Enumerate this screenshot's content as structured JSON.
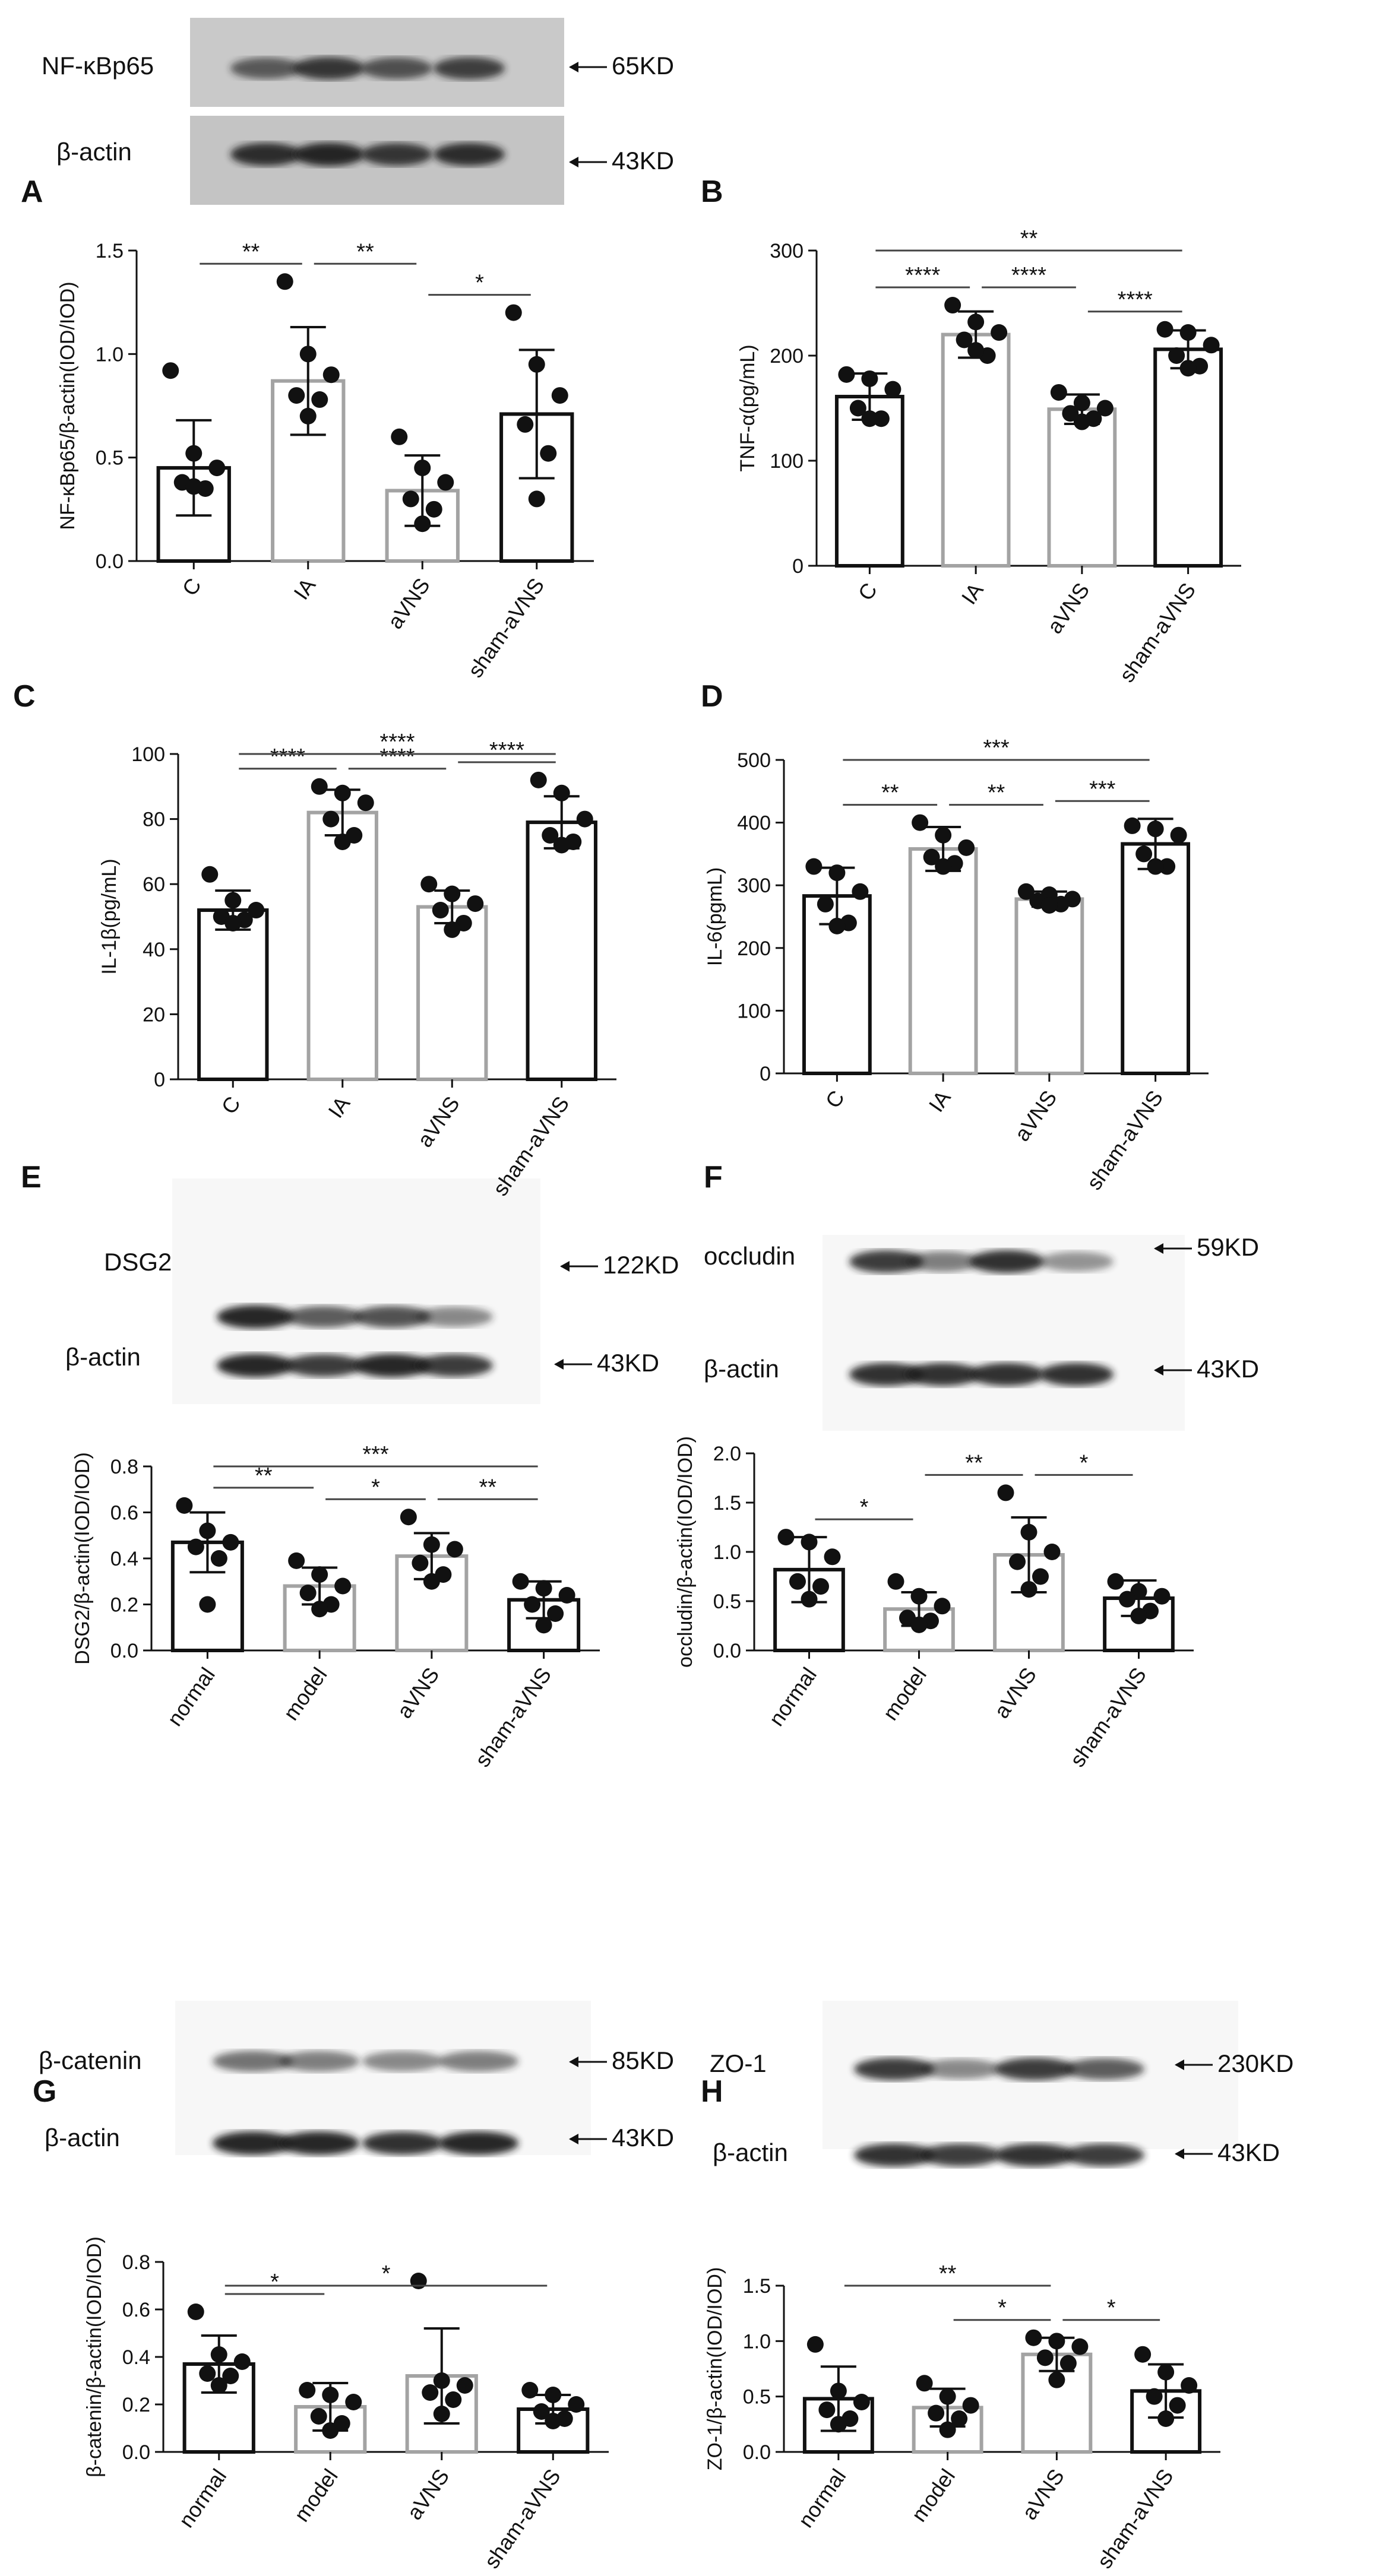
{
  "chart_data": [
    {
      "panel": "A",
      "type": "bar",
      "ylabel": "NF-κBp65/β-actin(IOD/IOD)",
      "ylim": [
        0,
        1.5
      ],
      "yticks": [
        "0.0",
        "0.5",
        "1.0",
        "1.5"
      ],
      "categories": [
        "C",
        "IA",
        "aVNS",
        "sham-aVNS"
      ],
      "values": [
        0.45,
        0.87,
        0.34,
        0.71
      ],
      "sd": [
        0.23,
        0.26,
        0.17,
        0.31
      ],
      "points": [
        [
          0.92,
          0.52,
          0.45,
          0.38,
          0.35,
          0.36
        ],
        [
          1.35,
          1.0,
          0.9,
          0.8,
          0.78,
          0.7
        ],
        [
          0.6,
          0.45,
          0.38,
          0.3,
          0.25,
          0.18
        ],
        [
          1.2,
          0.95,
          0.8,
          0.66,
          0.52,
          0.3
        ]
      ],
      "significance": [
        {
          "from": 0,
          "to": 1,
          "label": "**"
        },
        {
          "from": 1,
          "to": 2,
          "label": "**"
        },
        {
          "from": 2,
          "to": 3,
          "label": "*"
        }
      ],
      "blot": {
        "bands": [
          {
            "name": "NF-κBp65",
            "size": "65KD"
          },
          {
            "name": "β-actin",
            "size": "43KD"
          }
        ]
      }
    },
    {
      "panel": "B",
      "type": "bar",
      "ylabel": "TNF-α(pg/mL)",
      "ylim": [
        0,
        300
      ],
      "yticks": [
        "0",
        "100",
        "200",
        "300"
      ],
      "categories": [
        "C",
        "IA",
        "aVNS",
        "sham-aVNS"
      ],
      "values": [
        161,
        220,
        149,
        206
      ],
      "sd": [
        22,
        22,
        14,
        18
      ],
      "points": [
        [
          182,
          178,
          168,
          150,
          140,
          140
        ],
        [
          248,
          232,
          222,
          215,
          200,
          205
        ],
        [
          165,
          155,
          150,
          145,
          140,
          137
        ],
        [
          225,
          222,
          210,
          200,
          190,
          188
        ]
      ],
      "significance": [
        {
          "from": 0,
          "to": 1,
          "label": "****"
        },
        {
          "from": 1,
          "to": 2,
          "label": "****"
        },
        {
          "from": 2,
          "to": 3,
          "label": "****"
        },
        {
          "from": 0,
          "to": 3,
          "label": "**"
        }
      ]
    },
    {
      "panel": "C",
      "type": "bar",
      "ylabel": "IL-1β(pg/mL)",
      "ylim": [
        0,
        100
      ],
      "yticks": [
        "0",
        "20",
        "40",
        "60",
        "80",
        "100"
      ],
      "categories": [
        "C",
        "IA",
        "aVNS",
        "sham-aVNS"
      ],
      "values": [
        52,
        82,
        53,
        79
      ],
      "sd": [
        6,
        7,
        5,
        8
      ],
      "points": [
        [
          63,
          55,
          52,
          50,
          49,
          48
        ],
        [
          90,
          88,
          85,
          80,
          75,
          73
        ],
        [
          60,
          57,
          54,
          52,
          48,
          46
        ],
        [
          92,
          88,
          80,
          75,
          73,
          72
        ]
      ],
      "significance": [
        {
          "from": 0,
          "to": 1,
          "label": "****"
        },
        {
          "from": 1,
          "to": 2,
          "label": "****"
        },
        {
          "from": 2,
          "to": 3,
          "label": "****"
        },
        {
          "from": 0,
          "to": 3,
          "label": "****"
        }
      ]
    },
    {
      "panel": "D",
      "type": "bar",
      "ylabel": "IL-6(pgmL)",
      "ylim": [
        0,
        500
      ],
      "yticks": [
        "0",
        "100",
        "200",
        "300",
        "400",
        "500"
      ],
      "categories": [
        "C",
        "IA",
        "aVNS",
        "sham-aVNS"
      ],
      "values": [
        283,
        358,
        278,
        366
      ],
      "sd": [
        45,
        35,
        12,
        40
      ],
      "points": [
        [
          330,
          320,
          290,
          270,
          240,
          235
        ],
        [
          400,
          380,
          360,
          345,
          335,
          330
        ],
        [
          290,
          285,
          278,
          275,
          270,
          268
        ],
        [
          395,
          390,
          380,
          350,
          330,
          330
        ]
      ],
      "significance": [
        {
          "from": 0,
          "to": 1,
          "label": "**"
        },
        {
          "from": 1,
          "to": 2,
          "label": "**"
        },
        {
          "from": 2,
          "to": 3,
          "label": "***"
        },
        {
          "from": 0,
          "to": 3,
          "label": "***"
        }
      ]
    },
    {
      "panel": "E",
      "type": "bar",
      "ylabel": "DSG2/β-actin(IOD/IOD)",
      "ylim": [
        0,
        0.8
      ],
      "yticks": [
        "0.0",
        "0.2",
        "0.4",
        "0.6",
        "0.8"
      ],
      "categories": [
        "normal",
        "model",
        "aVNS",
        "sham-aVNS"
      ],
      "values": [
        0.47,
        0.28,
        0.41,
        0.22
      ],
      "sd": [
        0.13,
        0.08,
        0.1,
        0.08
      ],
      "points": [
        [
          0.63,
          0.52,
          0.47,
          0.45,
          0.4,
          0.2
        ],
        [
          0.39,
          0.33,
          0.28,
          0.25,
          0.2,
          0.18
        ],
        [
          0.58,
          0.46,
          0.44,
          0.38,
          0.33,
          0.3
        ],
        [
          0.3,
          0.27,
          0.24,
          0.2,
          0.16,
          0.11
        ]
      ],
      "significance": [
        {
          "from": 0,
          "to": 1,
          "label": "**"
        },
        {
          "from": 1,
          "to": 2,
          "label": "*"
        },
        {
          "from": 2,
          "to": 3,
          "label": "**"
        },
        {
          "from": 0,
          "to": 3,
          "label": "***"
        }
      ],
      "blot": {
        "bands": [
          {
            "name": "DSG2",
            "size": "122KD"
          },
          {
            "name": "β-actin",
            "size": "43KD"
          }
        ]
      }
    },
    {
      "panel": "F",
      "type": "bar",
      "ylabel": "occludin/β-actin(IOD/IOD)",
      "ylim": [
        0,
        2.0
      ],
      "yticks": [
        "0.0",
        "0.5",
        "1.0",
        "1.5",
        "2.0"
      ],
      "categories": [
        "normal",
        "model",
        "aVNS",
        "sham-aVNS"
      ],
      "values": [
        0.82,
        0.42,
        0.97,
        0.53
      ],
      "sd": [
        0.33,
        0.17,
        0.38,
        0.18
      ],
      "points": [
        [
          1.15,
          1.1,
          0.95,
          0.7,
          0.65,
          0.52
        ],
        [
          0.7,
          0.55,
          0.45,
          0.33,
          0.3,
          0.26
        ],
        [
          1.6,
          1.2,
          1.0,
          0.9,
          0.75,
          0.62
        ],
        [
          0.7,
          0.6,
          0.55,
          0.52,
          0.4,
          0.35
        ]
      ],
      "significance": [
        {
          "from": 0,
          "to": 1,
          "label": "*"
        },
        {
          "from": 1,
          "to": 2,
          "label": "**"
        },
        {
          "from": 2,
          "to": 3,
          "label": "*"
        }
      ],
      "blot": {
        "bands": [
          {
            "name": "occludin",
            "size": "59KD"
          },
          {
            "name": "β-actin",
            "size": "43KD"
          }
        ]
      }
    },
    {
      "panel": "G",
      "type": "bar",
      "ylabel": "β-catenin/β-actin(IOD/IOD)",
      "ylim": [
        0,
        0.8
      ],
      "yticks": [
        "0.0",
        "0.2",
        "0.4",
        "0.6",
        "0.8"
      ],
      "categories": [
        "normal",
        "model",
        "aVNS",
        "sham-aVNS"
      ],
      "values": [
        0.37,
        0.19,
        0.32,
        0.18
      ],
      "sd": [
        0.12,
        0.1,
        0.2,
        0.06
      ],
      "points": [
        [
          0.59,
          0.41,
          0.38,
          0.33,
          0.32,
          0.28
        ],
        [
          0.26,
          0.24,
          0.21,
          0.15,
          0.12,
          0.09
        ],
        [
          0.72,
          0.3,
          0.28,
          0.25,
          0.22,
          0.16
        ],
        [
          0.26,
          0.24,
          0.2,
          0.17,
          0.14,
          0.13
        ]
      ],
      "significance": [
        {
          "from": 0,
          "to": 1,
          "label": "*"
        },
        {
          "from": 0,
          "to": 3,
          "label": "*"
        }
      ],
      "blot": {
        "bands": [
          {
            "name": "β-catenin",
            "size": "85KD"
          },
          {
            "name": "β-actin",
            "size": "43KD"
          }
        ]
      }
    },
    {
      "panel": "H",
      "type": "bar",
      "ylabel": "ZO-1/β-actin(IOD/IOD)",
      "ylim": [
        0,
        1.5
      ],
      "yticks": [
        "0.0",
        "0.5",
        "1.0",
        "1.5"
      ],
      "categories": [
        "normal",
        "model",
        "aVNS",
        "sham-aVNS"
      ],
      "values": [
        0.48,
        0.4,
        0.88,
        0.55
      ],
      "sd": [
        0.29,
        0.17,
        0.15,
        0.24
      ],
      "points": [
        [
          0.97,
          0.55,
          0.45,
          0.38,
          0.3,
          0.25
        ],
        [
          0.62,
          0.5,
          0.42,
          0.35,
          0.3,
          0.2
        ],
        [
          1.03,
          1.0,
          0.95,
          0.85,
          0.8,
          0.65
        ],
        [
          0.88,
          0.72,
          0.6,
          0.5,
          0.42,
          0.3
        ]
      ],
      "significance": [
        {
          "from": 1,
          "to": 2,
          "label": "*"
        },
        {
          "from": 2,
          "to": 3,
          "label": "*"
        },
        {
          "from": 0,
          "to": 2,
          "label": "**"
        }
      ],
      "blot": {
        "bands": [
          {
            "name": "ZO-1",
            "size": "230KD"
          },
          {
            "name": "β-actin",
            "size": "43KD"
          }
        ]
      }
    }
  ]
}
